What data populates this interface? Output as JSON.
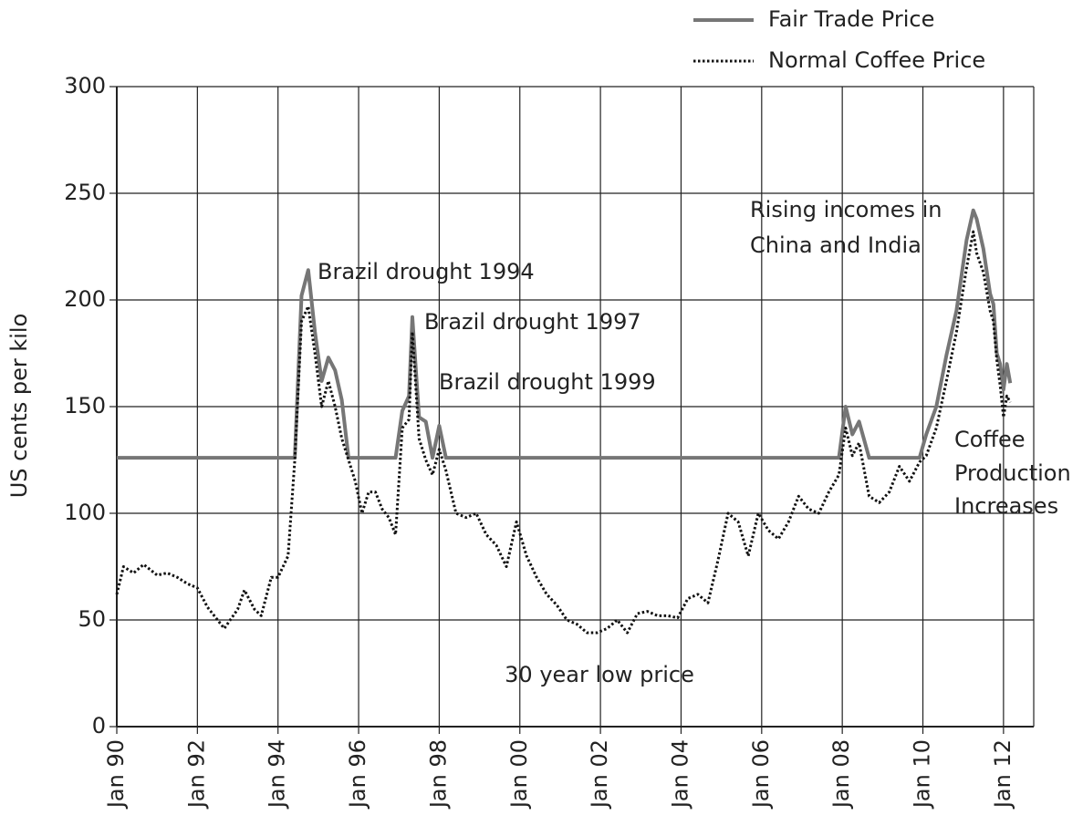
{
  "chart_data": {
    "type": "line",
    "y_label": "US cents per kilo",
    "x": [
      "1990-01",
      "1990-03",
      "1990-06",
      "1990-09",
      "1991-01",
      "1991-04",
      "1991-07",
      "1991-10",
      "1992-01",
      "1992-04",
      "1992-07",
      "1992-09",
      "1993-01",
      "1993-03",
      "1993-06",
      "1993-08",
      "1993-11",
      "1994-01",
      "1994-04",
      "1994-06",
      "1994-08",
      "1994-10",
      "1994-12",
      "1995-02",
      "1995-04",
      "1995-06",
      "1995-08",
      "1995-10",
      "1995-12",
      "1996-02",
      "1996-04",
      "1996-06",
      "1996-08",
      "1996-10",
      "1996-12",
      "1997-02",
      "1997-04",
      "1997-05",
      "1997-07",
      "1997-09",
      "1997-11",
      "1998-01",
      "1998-03",
      "1998-06",
      "1998-09",
      "1998-12",
      "1999-03",
      "1999-06",
      "1999-09",
      "1999-12",
      "2000-03",
      "2000-06",
      "2000-09",
      "2000-12",
      "2001-03",
      "2001-06",
      "2001-09",
      "2001-12",
      "2002-03",
      "2002-06",
      "2002-09",
      "2002-12",
      "2003-03",
      "2003-06",
      "2003-09",
      "2003-12",
      "2004-03",
      "2004-06",
      "2004-09",
      "2004-12",
      "2005-03",
      "2005-06",
      "2005-09",
      "2005-12",
      "2006-03",
      "2006-06",
      "2006-09",
      "2006-12",
      "2007-03",
      "2007-06",
      "2007-09",
      "2007-12",
      "2008-02",
      "2008-04",
      "2008-06",
      "2008-09",
      "2008-12",
      "2009-03",
      "2009-06",
      "2009-09",
      "2009-12",
      "2010-02",
      "2010-05",
      "2010-08",
      "2010-11",
      "2011-02",
      "2011-04",
      "2011-05",
      "2011-07",
      "2011-09",
      "2011-10",
      "2011-11",
      "2011-12",
      "2012-01",
      "2012-02",
      "2012-03"
    ],
    "series": [
      {
        "name": "Fair Trade Price",
        "color": "#767676",
        "style": "solid",
        "values": [
          126,
          126,
          126,
          126,
          126,
          126,
          126,
          126,
          126,
          126,
          126,
          126,
          126,
          126,
          126,
          126,
          126,
          126,
          126,
          126,
          202,
          214,
          185,
          162,
          173,
          167,
          153,
          126,
          126,
          126,
          126,
          126,
          126,
          126,
          126,
          148,
          155,
          192,
          145,
          143,
          126,
          141,
          126,
          126,
          126,
          126,
          126,
          126,
          126,
          126,
          126,
          126,
          126,
          126,
          126,
          126,
          126,
          126,
          126,
          126,
          126,
          126,
          126,
          126,
          126,
          126,
          126,
          126,
          126,
          126,
          126,
          126,
          126,
          126,
          126,
          126,
          126,
          126,
          126,
          126,
          126,
          126,
          150,
          137,
          143,
          126,
          126,
          126,
          126,
          126,
          126,
          137,
          150,
          174,
          195,
          228,
          242,
          238,
          224,
          203,
          198,
          175,
          170,
          158,
          170,
          161
        ]
      },
      {
        "name": "Normal Coffee Price",
        "color": "#111111",
        "style": "dotted",
        "values": [
          62,
          75,
          72,
          76,
          71,
          72,
          70,
          67,
          65,
          56,
          50,
          46,
          55,
          64,
          55,
          52,
          70,
          70,
          80,
          125,
          190,
          197,
          175,
          150,
          162,
          150,
          135,
          125,
          115,
          100,
          110,
          110,
          102,
          98,
          90,
          140,
          144,
          185,
          135,
          125,
          118,
          130,
          120,
          100,
          98,
          100,
          90,
          85,
          75,
          96,
          80,
          70,
          62,
          57,
          50,
          48,
          44,
          44,
          46,
          50,
          44,
          53,
          54,
          52,
          52,
          51,
          60,
          62,
          58,
          78,
          100,
          96,
          80,
          100,
          92,
          88,
          96,
          108,
          102,
          100,
          110,
          118,
          140,
          127,
          133,
          108,
          105,
          110,
          122,
          115,
          124,
          127,
          140,
          162,
          185,
          215,
          232,
          222,
          213,
          195,
          190,
          172,
          160,
          145,
          155,
          152
        ]
      }
    ],
    "ylim": [
      0,
      300
    ],
    "yticks": [
      0,
      50,
      100,
      150,
      200,
      250,
      300
    ],
    "xlim": [
      "1990-01",
      "2012-10"
    ],
    "xticks": [
      {
        "value": "1990-01",
        "label": "Jan 90"
      },
      {
        "value": "1992-01",
        "label": "Jan 92"
      },
      {
        "value": "1994-01",
        "label": "Jan 94"
      },
      {
        "value": "1996-01",
        "label": "Jan 96"
      },
      {
        "value": "1998-01",
        "label": "Jan 98"
      },
      {
        "value": "2000-01",
        "label": "Jan 00"
      },
      {
        "value": "2002-01",
        "label": "Jan 02"
      },
      {
        "value": "2004-01",
        "label": "Jan 04"
      },
      {
        "value": "2006-01",
        "label": "Jan 06"
      },
      {
        "value": "2008-01",
        "label": "Jan 08"
      },
      {
        "value": "2010-01",
        "label": "Jan 10"
      },
      {
        "value": "2012-01",
        "label": "Jan 12"
      }
    ],
    "grid": true,
    "legend": "top-right",
    "annotations": [
      "Brazil drought 1994",
      "Brazil drought 1997",
      "Brazil drought 1999",
      "30 year low price",
      "Rising incomes in",
      "China and India",
      "Coffee",
      "Production",
      "Increases"
    ]
  }
}
